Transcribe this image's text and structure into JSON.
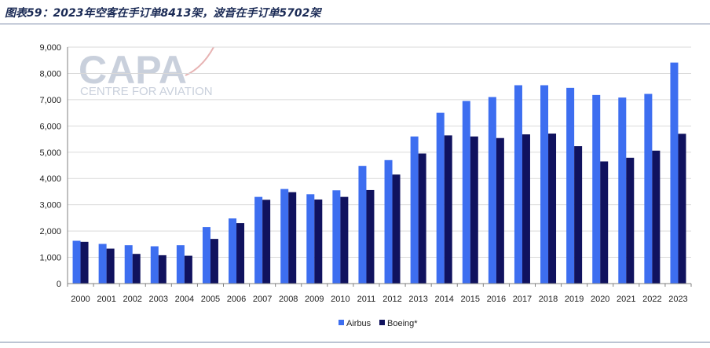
{
  "figure": {
    "title": "图表59：2023年空客在手订单8413架，波音在手订单5702架"
  },
  "watermark": {
    "logo_text": "CAPA",
    "sub_text": "CENTRE FOR AVIATION"
  },
  "colors": {
    "airbus": "#3d6ef0",
    "boeing": "#10125e",
    "grid": "#d9d9d9",
    "axis": "#808080"
  },
  "chart_data": {
    "type": "bar",
    "title": "",
    "xlabel": "",
    "ylabel": "",
    "ylim": [
      0,
      9000
    ],
    "yticks": [
      0,
      1000,
      2000,
      3000,
      4000,
      5000,
      6000,
      7000,
      8000,
      9000
    ],
    "ytick_labels": [
      "0",
      "1,000",
      "2,000",
      "3,000",
      "4,000",
      "5,000",
      "6,000",
      "7,000",
      "8,000",
      "9,000"
    ],
    "grid": true,
    "legend_position": "bottom",
    "categories": [
      "2000",
      "2001",
      "2002",
      "2003",
      "2004",
      "2005",
      "2006",
      "2007",
      "2008",
      "2009",
      "2010",
      "2011",
      "2012",
      "2013",
      "2014",
      "2015",
      "2016",
      "2017",
      "2018",
      "2019",
      "2020",
      "2021",
      "2022",
      "2023"
    ],
    "series": [
      {
        "name": "Airbus",
        "color": "#3d6ef0",
        "values": [
          1630,
          1510,
          1460,
          1420,
          1460,
          2150,
          2480,
          3300,
          3600,
          3400,
          3550,
          4480,
          4700,
          5600,
          6500,
          6950,
          7100,
          7550,
          7550,
          7450,
          7180,
          7080,
          7220,
          8413
        ]
      },
      {
        "name": "Boeing*",
        "color": "#10125e",
        "values": [
          1590,
          1330,
          1130,
          1080,
          1060,
          1700,
          2300,
          3190,
          3480,
          3200,
          3300,
          3560,
          4150,
          4950,
          5640,
          5600,
          5540,
          5680,
          5710,
          5230,
          4650,
          4790,
          5060,
          5702
        ]
      }
    ]
  }
}
